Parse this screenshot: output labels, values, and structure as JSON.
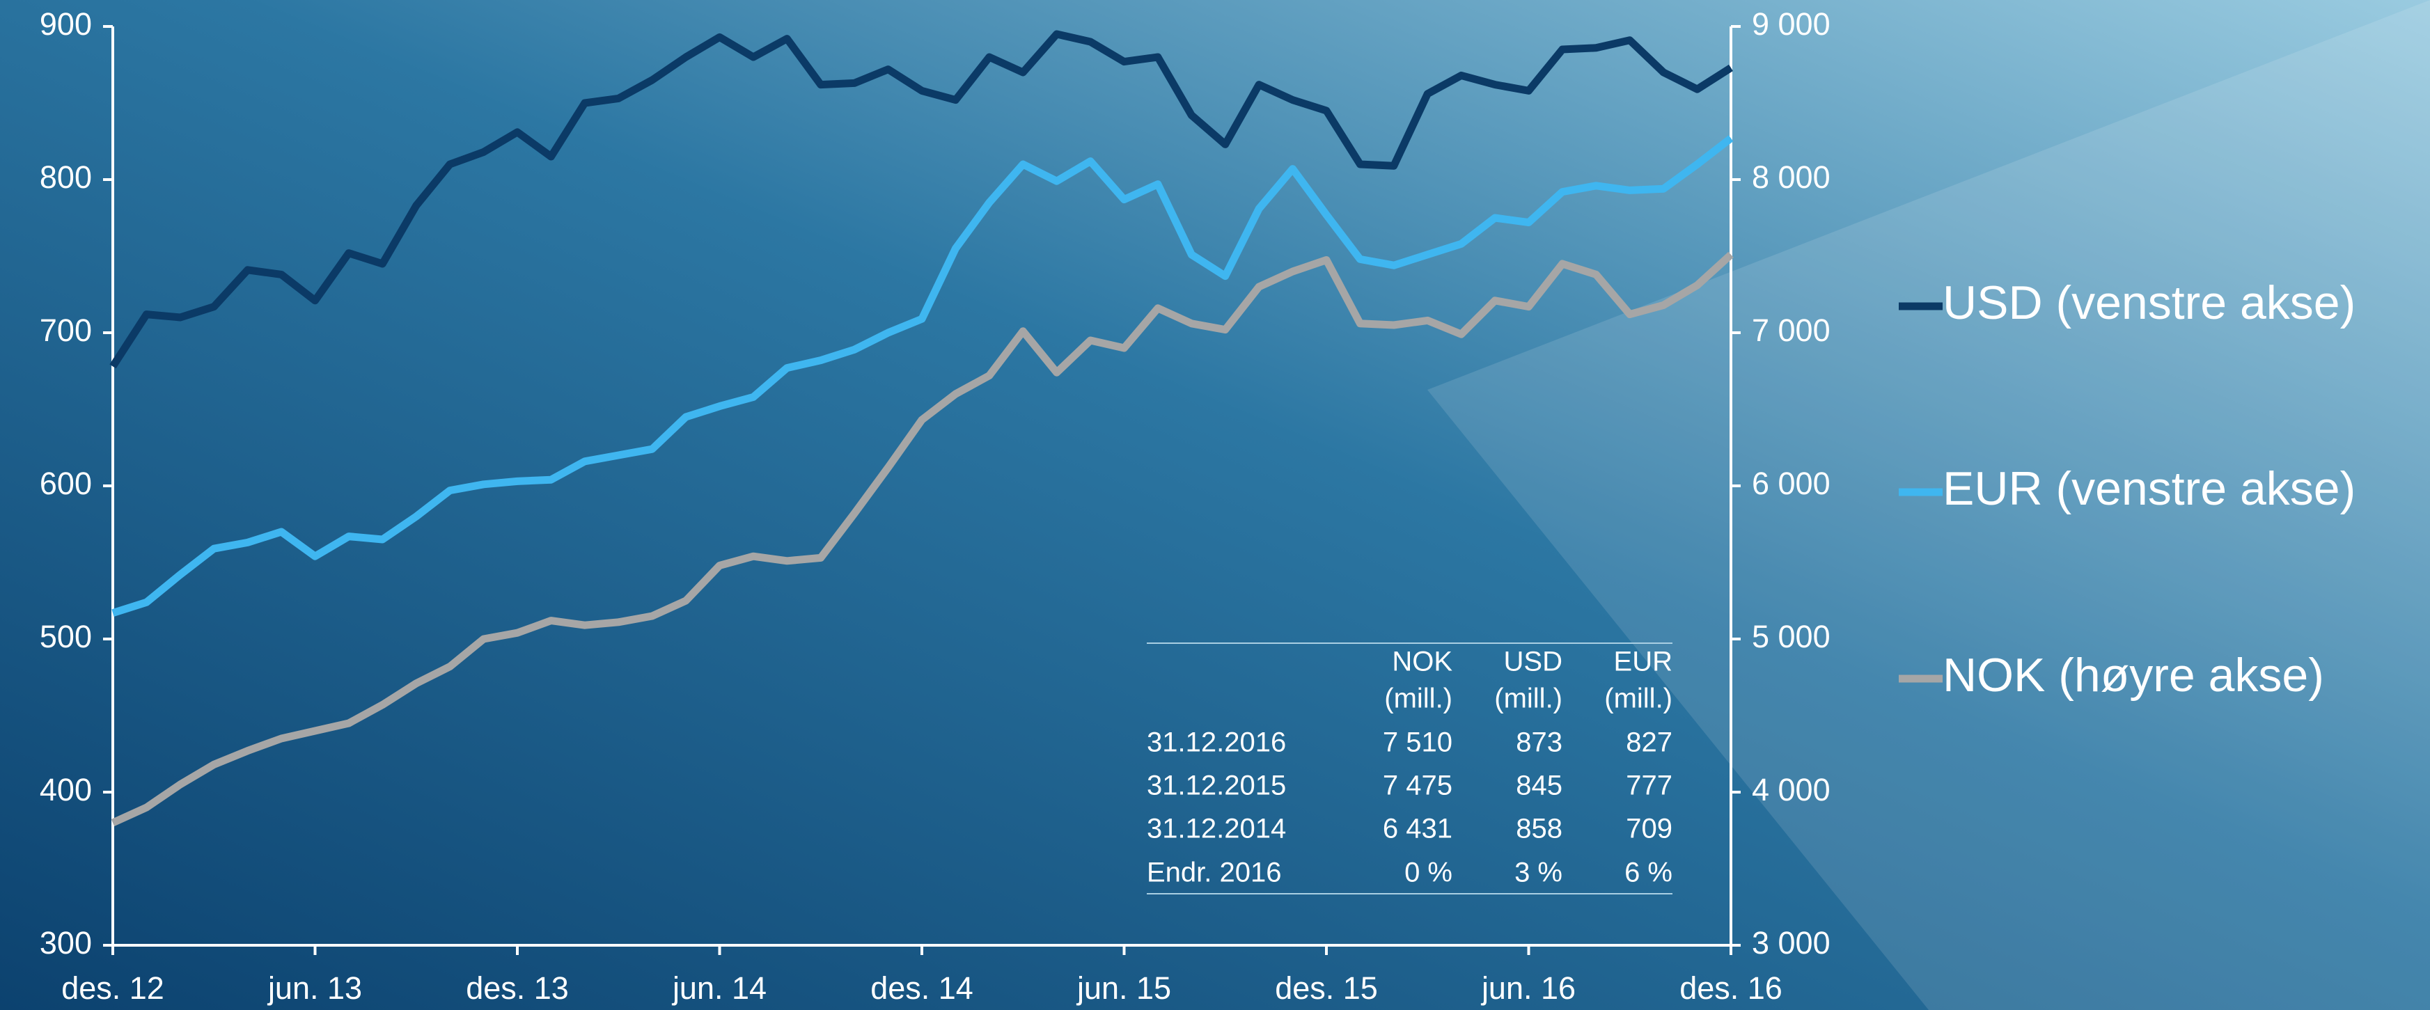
{
  "chart_data": {
    "type": "line",
    "categories": [
      "des. 12",
      null,
      null,
      null,
      null,
      null,
      "jun. 13",
      null,
      null,
      null,
      null,
      null,
      "des. 13",
      null,
      null,
      null,
      null,
      null,
      "jun. 14",
      null,
      null,
      null,
      null,
      null,
      "des. 14",
      null,
      null,
      null,
      null,
      null,
      "jun. 15",
      null,
      null,
      null,
      null,
      null,
      "des. 15",
      null,
      null,
      null,
      null,
      null,
      "jun. 16",
      null,
      null,
      null,
      null,
      null,
      "des. 16"
    ],
    "series": [
      {
        "name": "USD (venstre akse)",
        "color": "#0b3a66",
        "values": [
          678,
          712,
          710,
          717,
          741,
          738,
          721,
          752,
          745,
          783,
          810,
          818,
          831,
          815,
          850,
          853,
          865,
          880,
          893,
          880,
          892,
          862,
          863,
          872,
          858,
          852,
          880,
          870,
          895,
          890,
          877,
          880,
          842,
          823,
          862,
          852,
          845,
          810,
          809,
          856,
          868,
          862,
          858,
          885,
          886,
          891,
          870,
          859,
          873
        ]
      },
      {
        "name": "EUR (venstre akse)",
        "color": "#3fb6f0",
        "values": [
          517,
          524,
          542,
          559,
          563,
          570,
          554,
          567,
          565,
          580,
          597,
          601,
          603,
          604,
          616,
          620,
          624,
          645,
          652,
          658,
          677,
          682,
          689,
          700,
          709,
          755,
          785,
          810,
          799,
          812,
          787,
          797,
          751,
          737,
          781,
          807,
          777,
          748,
          744,
          751,
          758,
          775,
          772,
          792,
          796,
          793,
          794,
          810,
          827
        ]
      },
      {
        "name": "NOK (høyre akse)",
        "color": "#a6a6a6",
        "axis": "y2",
        "values": [
          3800,
          3900,
          4050,
          4180,
          4270,
          4350,
          4400,
          4450,
          4570,
          4710,
          4820,
          5000,
          5040,
          5120,
          5090,
          5110,
          5150,
          5250,
          5480,
          5540,
          5510,
          5530,
          5820,
          6120,
          6431,
          6600,
          6720,
          7010,
          6740,
          6950,
          6900,
          7160,
          7060,
          7020,
          7300,
          7400,
          7475,
          7060,
          7050,
          7080,
          6990,
          7210,
          7170,
          7450,
          7380,
          7120,
          7180,
          7310,
          7510
        ]
      }
    ],
    "ylim": [
      300,
      900
    ],
    "yticks": [
      300,
      400,
      500,
      600,
      700,
      800,
      900
    ],
    "y2lim": [
      3000,
      9000
    ],
    "y2ticks": [
      {
        "value": 3000,
        "label": "3 000"
      },
      {
        "value": 4000,
        "label": "4 000"
      },
      {
        "value": 5000,
        "label": "5 000"
      },
      {
        "value": 6000,
        "label": "6 000"
      },
      {
        "value": 7000,
        "label": "7 000"
      },
      {
        "value": 8000,
        "label": "8 000"
      },
      {
        "value": 9000,
        "label": "9 000"
      }
    ],
    "legend": "right",
    "table": {
      "header": [
        [
          "NOK",
          "(mill.)"
        ],
        [
          "USD",
          "(mill.)"
        ],
        [
          "EUR",
          "(mill.)"
        ]
      ],
      "rows": [
        [
          "31.12.2016",
          "7 510",
          "873",
          "827"
        ],
        [
          "31.12.2015",
          "7 475",
          "845",
          "777"
        ],
        [
          "31.12.2014",
          "6 431",
          "858",
          "709"
        ],
        [
          "Endr. 2016",
          "0 %",
          "3 %",
          "6 %"
        ]
      ]
    }
  }
}
